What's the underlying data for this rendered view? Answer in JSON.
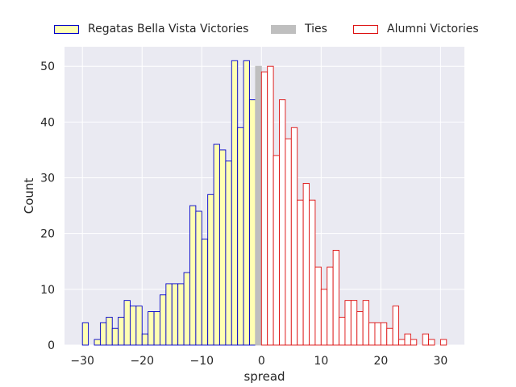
{
  "chart_data": {
    "type": "bar",
    "style": "seaborn-darkgrid histogram, bin width 1",
    "xlabel": "spread",
    "ylabel": "Count",
    "xlim": [
      -33,
      34
    ],
    "ylim": [
      0,
      53.5
    ],
    "xticks": [
      -30,
      -20,
      -10,
      0,
      10,
      20,
      30
    ],
    "yticks": [
      0,
      10,
      20,
      30,
      40,
      50
    ],
    "grid": true,
    "legend_position": "top",
    "series": [
      {
        "name": "Regatas Bella Vista Victories",
        "face_color": "#ffffb3",
        "edge_color": "#0000cc",
        "bins": [
          {
            "x": -30,
            "count": 4
          },
          {
            "x": -29,
            "count": 0
          },
          {
            "x": -28,
            "count": 1
          },
          {
            "x": -27,
            "count": 4
          },
          {
            "x": -26,
            "count": 5
          },
          {
            "x": -25,
            "count": 3
          },
          {
            "x": -24,
            "count": 5
          },
          {
            "x": -23,
            "count": 8
          },
          {
            "x": -22,
            "count": 7
          },
          {
            "x": -21,
            "count": 7
          },
          {
            "x": -20,
            "count": 2
          },
          {
            "x": -19,
            "count": 6
          },
          {
            "x": -18,
            "count": 6
          },
          {
            "x": -17,
            "count": 9
          },
          {
            "x": -16,
            "count": 11
          },
          {
            "x": -15,
            "count": 11
          },
          {
            "x": -14,
            "count": 11
          },
          {
            "x": -13,
            "count": 13
          },
          {
            "x": -12,
            "count": 25
          },
          {
            "x": -11,
            "count": 24
          },
          {
            "x": -10,
            "count": 19
          },
          {
            "x": -9,
            "count": 27
          },
          {
            "x": -8,
            "count": 36
          },
          {
            "x": -7,
            "count": 35
          },
          {
            "x": -6,
            "count": 33
          },
          {
            "x": -5,
            "count": 51
          },
          {
            "x": -4,
            "count": 39
          },
          {
            "x": -3,
            "count": 51
          },
          {
            "x": -2,
            "count": 44
          }
        ]
      },
      {
        "name": "Ties",
        "face_color": "#bfbfbf",
        "edge_color": "#bfbfbf",
        "bins": [
          {
            "x": -1,
            "count": 50
          }
        ]
      },
      {
        "name": "Alumni Victories",
        "face_color": "#ffffff",
        "edge_color": "#dd1111",
        "bins": [
          {
            "x": 0,
            "count": 49
          },
          {
            "x": 1,
            "count": 50
          },
          {
            "x": 2,
            "count": 34
          },
          {
            "x": 3,
            "count": 44
          },
          {
            "x": 4,
            "count": 37
          },
          {
            "x": 5,
            "count": 39
          },
          {
            "x": 6,
            "count": 26
          },
          {
            "x": 7,
            "count": 29
          },
          {
            "x": 8,
            "count": 26
          },
          {
            "x": 9,
            "count": 14
          },
          {
            "x": 10,
            "count": 10
          },
          {
            "x": 11,
            "count": 14
          },
          {
            "x": 12,
            "count": 17
          },
          {
            "x": 13,
            "count": 5
          },
          {
            "x": 14,
            "count": 8
          },
          {
            "x": 15,
            "count": 8
          },
          {
            "x": 16,
            "count": 6
          },
          {
            "x": 17,
            "count": 8
          },
          {
            "x": 18,
            "count": 4
          },
          {
            "x": 19,
            "count": 4
          },
          {
            "x": 20,
            "count": 4
          },
          {
            "x": 21,
            "count": 3
          },
          {
            "x": 22,
            "count": 7
          },
          {
            "x": 23,
            "count": 1
          },
          {
            "x": 24,
            "count": 2
          },
          {
            "x": 25,
            "count": 1
          },
          {
            "x": 26,
            "count": 0
          },
          {
            "x": 27,
            "count": 2
          },
          {
            "x": 28,
            "count": 1
          },
          {
            "x": 29,
            "count": 0
          },
          {
            "x": 30,
            "count": 1
          }
        ]
      }
    ]
  }
}
